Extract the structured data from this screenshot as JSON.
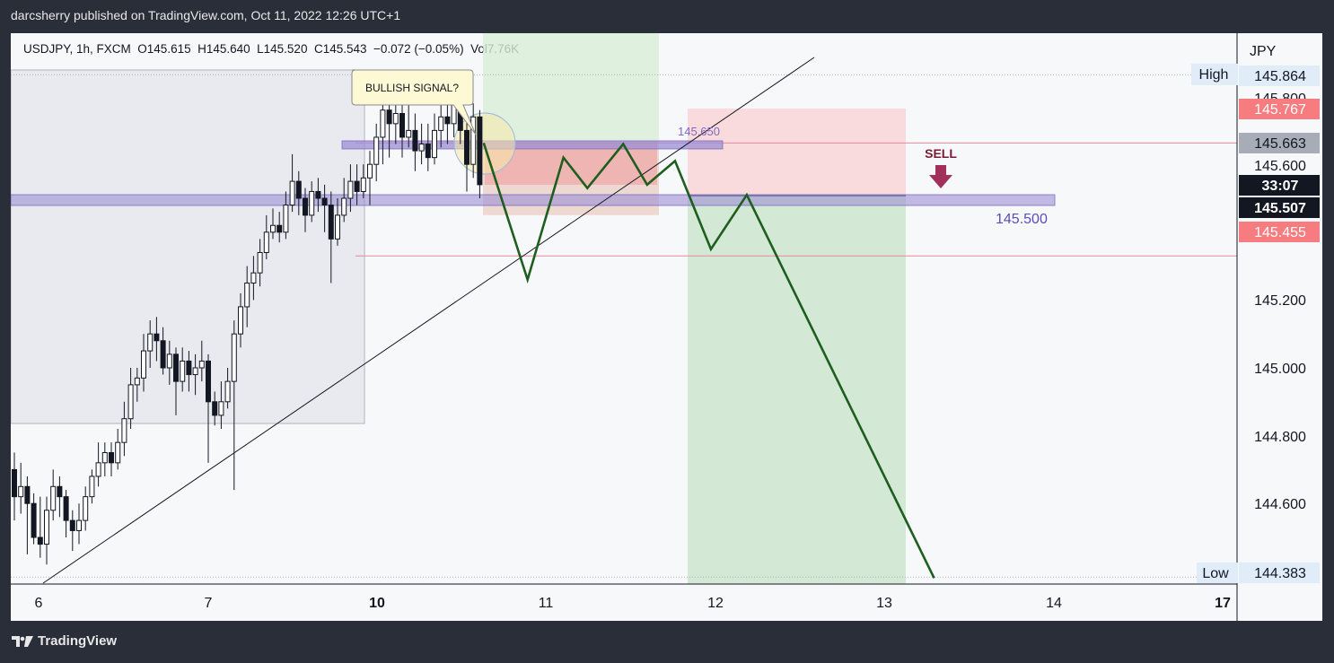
{
  "header": {
    "published": "darcsherry published on TradingView.com, Oct 11, 2022 12:26 UTC+1"
  },
  "symbol": {
    "line": "USDJPY, 1h, FXCM  O145.615  H145.640  L145.520  C145.543  −0.072 (−0.05%)  Vol7.76K"
  },
  "footer": {
    "brand": "TradingView",
    "logo_icon": "tradingview-logo-icon"
  },
  "chart_data": {
    "type": "candlestick",
    "symbol": "USDJPY",
    "interval": "1h",
    "currency": "JPY",
    "x_ticks": [
      {
        "label": "6",
        "bold": false
      },
      {
        "label": "7",
        "bold": false
      },
      {
        "label": "10",
        "bold": true
      },
      {
        "label": "11",
        "bold": false
      },
      {
        "label": "12",
        "bold": false
      },
      {
        "label": "13",
        "bold": false
      },
      {
        "label": "14",
        "bold": false
      },
      {
        "label": "17",
        "bold": true
      }
    ],
    "y_ticks": [
      "145.600",
      "145.200",
      "145.000",
      "144.800",
      "144.600"
    ],
    "ylim": [
      144.38,
      145.9
    ],
    "price_labels": {
      "high_label": "High",
      "high_value": "145.864",
      "low_label": "Low",
      "low_value": "144.383",
      "stop": "145.767",
      "entry": "145.663",
      "countdown": "33:07",
      "last": "145.507",
      "target": "145.455",
      "hidden_tick": "145.800"
    },
    "levels": {
      "resistance_label": "145.650",
      "support_label": "145.500"
    },
    "annotations": {
      "callout": "BULLISH SIGNAL?",
      "sell": "SELL"
    },
    "colors": {
      "bull": "#ffffff",
      "bear": "#131722",
      "wick": "#131722",
      "projection": "#1e5e1e",
      "zone": "#9c8fd4",
      "sell": "#a2305a",
      "accent_red": "#f77c80",
      "support_text": "#5b4bbd"
    },
    "candles": [
      [
        144.7,
        144.62,
        144.75,
        144.55
      ],
      [
        144.62,
        144.65,
        144.72,
        144.57
      ],
      [
        144.65,
        144.6,
        144.68,
        144.45
      ],
      [
        144.6,
        144.5,
        144.63,
        144.48
      ],
      [
        144.5,
        144.48,
        144.62,
        144.44
      ],
      [
        144.48,
        144.58,
        144.62,
        144.42
      ],
      [
        144.58,
        144.65,
        144.7,
        144.55
      ],
      [
        144.65,
        144.62,
        144.68,
        144.56
      ],
      [
        144.62,
        144.55,
        144.64,
        144.5
      ],
      [
        144.55,
        144.52,
        144.58,
        144.46
      ],
      [
        144.52,
        144.55,
        144.6,
        144.48
      ],
      [
        144.55,
        144.62,
        144.65,
        144.52
      ],
      [
        144.62,
        144.68,
        144.7,
        144.6
      ],
      [
        144.68,
        144.72,
        144.78,
        144.65
      ],
      [
        144.72,
        144.75,
        144.78,
        144.68
      ],
      [
        144.75,
        144.72,
        144.78,
        144.68
      ],
      [
        144.72,
        144.78,
        144.82,
        144.7
      ],
      [
        144.78,
        144.85,
        144.9,
        144.74
      ],
      [
        144.85,
        144.95,
        145.0,
        144.82
      ],
      [
        144.95,
        144.97,
        145.0,
        144.9
      ],
      [
        144.97,
        145.05,
        145.1,
        144.93
      ],
      [
        145.05,
        145.1,
        145.14,
        145.0
      ],
      [
        145.1,
        145.08,
        145.15,
        145.02
      ],
      [
        145.08,
        145.0,
        145.12,
        144.98
      ],
      [
        145.0,
        145.04,
        145.08,
        144.95
      ],
      [
        145.04,
        144.96,
        145.06,
        144.86
      ],
      [
        144.96,
        145.02,
        145.06,
        144.93
      ],
      [
        145.02,
        144.98,
        145.05,
        144.93
      ],
      [
        144.98,
        145.0,
        145.04,
        144.92
      ],
      [
        145.0,
        145.02,
        145.08,
        144.96
      ],
      [
        145.02,
        144.9,
        145.04,
        144.72
      ],
      [
        144.9,
        144.86,
        144.93,
        144.83
      ],
      [
        144.86,
        144.9,
        144.96,
        144.82
      ],
      [
        144.9,
        144.96,
        145.0,
        144.88
      ],
      [
        144.96,
        145.1,
        145.14,
        144.64
      ],
      [
        145.1,
        145.18,
        145.22,
        145.06
      ],
      [
        145.18,
        145.25,
        145.3,
        145.12
      ],
      [
        145.25,
        145.28,
        145.33,
        145.2
      ],
      [
        145.28,
        145.34,
        145.38,
        145.24
      ],
      [
        145.34,
        145.4,
        145.45,
        145.32
      ],
      [
        145.4,
        145.42,
        145.47,
        145.38
      ],
      [
        145.42,
        145.4,
        145.46,
        145.37
      ],
      [
        145.4,
        145.48,
        145.52,
        145.38
      ],
      [
        145.48,
        145.55,
        145.63,
        145.46
      ],
      [
        145.55,
        145.5,
        145.58,
        145.45
      ],
      [
        145.5,
        145.45,
        145.53,
        145.4
      ],
      [
        145.45,
        145.52,
        145.55,
        145.43
      ],
      [
        145.52,
        145.5,
        145.56,
        145.46
      ],
      [
        145.5,
        145.48,
        145.54,
        145.4
      ],
      [
        145.48,
        145.38,
        145.52,
        145.25
      ],
      [
        145.38,
        145.45,
        145.5,
        145.36
      ],
      [
        145.45,
        145.5,
        145.56,
        145.43
      ],
      [
        145.5,
        145.55,
        145.6,
        145.46
      ],
      [
        145.55,
        145.52,
        145.6,
        145.48
      ],
      [
        145.52,
        145.56,
        145.6,
        145.5
      ],
      [
        145.56,
        145.6,
        145.64,
        145.48
      ],
      [
        145.6,
        145.68,
        145.72,
        145.55
      ],
      [
        145.68,
        145.76,
        145.8,
        145.6
      ],
      [
        145.76,
        145.72,
        145.8,
        145.62
      ],
      [
        145.72,
        145.75,
        145.82,
        145.66
      ],
      [
        145.75,
        145.68,
        145.78,
        145.62
      ],
      [
        145.68,
        145.7,
        145.78,
        145.65
      ],
      [
        145.7,
        145.64,
        145.75,
        145.58
      ],
      [
        145.64,
        145.66,
        145.72,
        145.6
      ],
      [
        145.66,
        145.62,
        145.72,
        145.58
      ],
      [
        145.62,
        145.7,
        145.75,
        145.6
      ],
      [
        145.7,
        145.74,
        145.79,
        145.65
      ],
      [
        145.74,
        145.72,
        145.79,
        145.66
      ],
      [
        145.72,
        145.78,
        145.85,
        145.68
      ],
      [
        145.78,
        145.7,
        145.86,
        145.66
      ],
      [
        145.7,
        145.6,
        145.74,
        145.52
      ],
      [
        145.6,
        145.74,
        145.78,
        145.56
      ],
      [
        145.74,
        145.54,
        145.76,
        145.5
      ]
    ],
    "projection": [
      [
        1,
        145.663
      ],
      [
        12,
        145.26
      ],
      [
        21,
        145.62
      ],
      [
        27,
        145.53
      ],
      [
        36,
        145.66
      ],
      [
        42,
        145.54
      ],
      [
        49,
        145.61
      ],
      [
        58,
        145.35
      ],
      [
        67,
        145.51
      ],
      [
        114,
        144.38
      ]
    ]
  }
}
